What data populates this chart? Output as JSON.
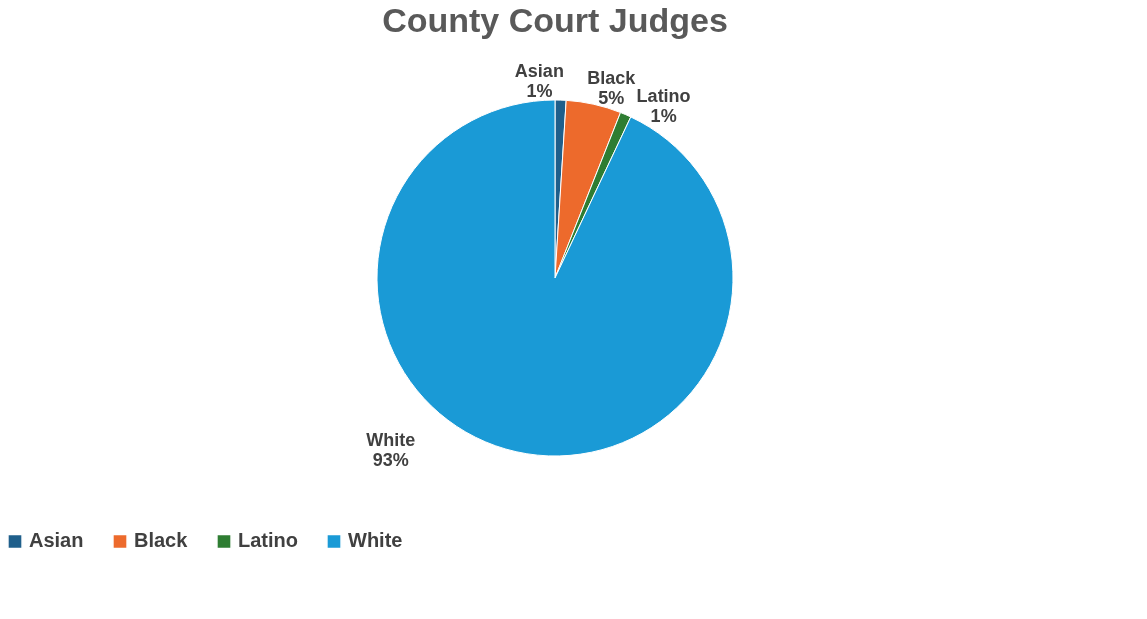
{
  "chart_data": {
    "type": "pie",
    "title": "County Court Judges",
    "categories": [
      "Asian",
      "Black",
      "Latino",
      "White"
    ],
    "values": [
      1,
      5,
      1,
      93
    ],
    "value_labels": [
      "1%",
      "5%",
      "1%",
      "93%"
    ],
    "colors": [
      "#1f5f8b",
      "#ed6a2c",
      "#2e7d32",
      "#1a9ad6"
    ],
    "legend": "bottom"
  }
}
